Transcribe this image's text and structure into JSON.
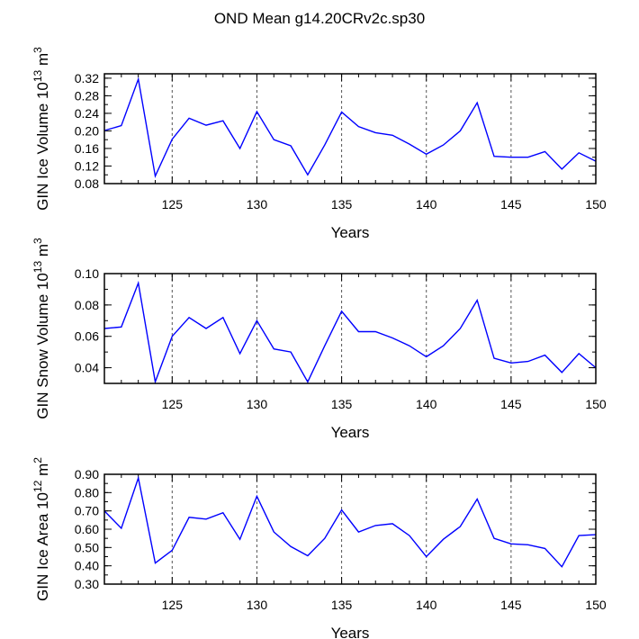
{
  "page_title": "OND Mean g14.20CRv2c.sp30",
  "colors": {
    "line": "#0000ff",
    "axis": "#000000",
    "grid": "#555555"
  },
  "chart_data": [
    {
      "type": "line",
      "title": "OND Mean g14.20CRv2c.sp30",
      "xlabel": "Years",
      "ylabel_main": "GIN Ice Volume 10",
      "ylabel_exp": "13",
      "ylabel_unit": " m",
      "ylabel_unit_exp": "3",
      "xlim": [
        121,
        150
      ],
      "ylim": [
        0.08,
        0.33
      ],
      "yticks": [
        0.08,
        0.12,
        0.16,
        0.2,
        0.24,
        0.28,
        0.32
      ],
      "ytick_labels": [
        "0.08",
        "0.12",
        "0.16",
        "0.20",
        "0.24",
        "0.28",
        "0.32"
      ],
      "xticks": [
        125,
        130,
        135,
        140,
        145,
        150
      ],
      "xtick_labels": [
        "125",
        "130",
        "135",
        "140",
        "145",
        "150"
      ],
      "grid": "vertical dashed at major x ticks",
      "x": [
        121,
        122,
        123,
        124,
        125,
        126,
        127,
        128,
        129,
        130,
        131,
        132,
        133,
        134,
        135,
        136,
        137,
        138,
        139,
        140,
        141,
        142,
        143,
        144,
        145,
        146,
        147,
        148,
        149,
        150
      ],
      "values": [
        0.201,
        0.212,
        0.318,
        0.097,
        0.181,
        0.229,
        0.213,
        0.223,
        0.16,
        0.244,
        0.18,
        0.166,
        0.1,
        0.168,
        0.243,
        0.21,
        0.196,
        0.19,
        0.17,
        0.147,
        0.168,
        0.2,
        0.264,
        0.142,
        0.14,
        0.14,
        0.153,
        0.113,
        0.15,
        0.131
      ]
    },
    {
      "type": "line",
      "xlabel": "Years",
      "ylabel_main": "GIN Snow Volume 10",
      "ylabel_exp": "13",
      "ylabel_unit": " m",
      "ylabel_unit_exp": "3",
      "xlim": [
        121,
        150
      ],
      "ylim": [
        0.03,
        0.1
      ],
      "yticks": [
        0.04,
        0.06,
        0.08,
        0.1
      ],
      "ytick_labels": [
        "0.04",
        "0.06",
        "0.08",
        "0.10"
      ],
      "xticks": [
        125,
        130,
        135,
        140,
        145,
        150
      ],
      "xtick_labels": [
        "125",
        "130",
        "135",
        "140",
        "145",
        "150"
      ],
      "grid": "vertical dashed at major x ticks",
      "x": [
        121,
        122,
        123,
        124,
        125,
        126,
        127,
        128,
        129,
        130,
        131,
        132,
        133,
        134,
        135,
        136,
        137,
        138,
        139,
        140,
        141,
        142,
        143,
        144,
        145,
        146,
        147,
        148,
        149,
        150
      ],
      "values": [
        0.065,
        0.066,
        0.094,
        0.031,
        0.06,
        0.072,
        0.065,
        0.072,
        0.049,
        0.07,
        0.052,
        0.05,
        0.031,
        0.054,
        0.076,
        0.063,
        0.063,
        0.059,
        0.054,
        0.047,
        0.054,
        0.065,
        0.083,
        0.046,
        0.043,
        0.044,
        0.048,
        0.037,
        0.049,
        0.04
      ]
    },
    {
      "type": "line",
      "xlabel": "Years",
      "ylabel_main": "GIN Ice Area 10",
      "ylabel_exp": "12",
      "ylabel_unit": " m",
      "ylabel_unit_exp": "2",
      "xlim": [
        121,
        150
      ],
      "ylim": [
        0.3,
        0.9
      ],
      "yticks": [
        0.3,
        0.4,
        0.5,
        0.6,
        0.7,
        0.8,
        0.9
      ],
      "ytick_labels": [
        "0.30",
        "0.40",
        "0.50",
        "0.60",
        "0.70",
        "0.80",
        "0.90"
      ],
      "xticks": [
        125,
        130,
        135,
        140,
        145,
        150
      ],
      "xtick_labels": [
        "125",
        "130",
        "135",
        "140",
        "145",
        "150"
      ],
      "grid": "vertical dashed at major x ticks",
      "x": [
        121,
        122,
        123,
        124,
        125,
        126,
        127,
        128,
        129,
        130,
        131,
        132,
        133,
        134,
        135,
        136,
        137,
        138,
        139,
        140,
        141,
        142,
        143,
        144,
        145,
        146,
        147,
        148,
        149,
        150
      ],
      "values": [
        0.7,
        0.605,
        0.88,
        0.415,
        0.485,
        0.665,
        0.655,
        0.69,
        0.545,
        0.78,
        0.585,
        0.505,
        0.455,
        0.55,
        0.705,
        0.585,
        0.62,
        0.63,
        0.565,
        0.45,
        0.545,
        0.615,
        0.765,
        0.55,
        0.52,
        0.515,
        0.495,
        0.395,
        0.565,
        0.57
      ]
    }
  ]
}
